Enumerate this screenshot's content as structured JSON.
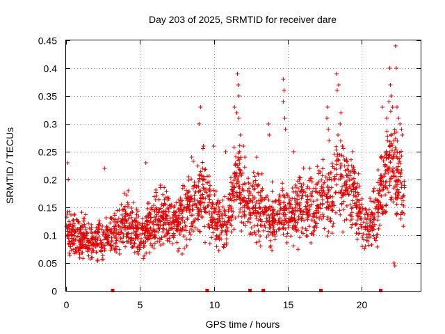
{
  "chart_data": {
    "type": "scatter",
    "title": "Day 203 of 2025, SRMTID for receiver dare",
    "xlabel": "GPS time / hours",
    "ylabel": "SRMTID / TECUs",
    "xlim": [
      0,
      24
    ],
    "ylim": [
      0,
      0.45
    ],
    "xticks": [
      0,
      5,
      10,
      15,
      20
    ],
    "xtick_labels": [
      "0",
      "5",
      "10",
      "15",
      "20"
    ],
    "yticks": [
      0,
      0.05,
      0.1,
      0.15,
      0.2,
      0.25,
      0.3,
      0.35,
      0.4,
      0.45
    ],
    "ytick_labels": [
      "0",
      "0.05",
      "0.1",
      "0.15",
      "0.2",
      "0.25",
      "0.3",
      "0.35",
      "0.4",
      "0.45"
    ],
    "grid": true,
    "marker": "+",
    "color": "#e00000",
    "trend": {
      "x": [
        0,
        0.5,
        1,
        1.5,
        2,
        2.5,
        3,
        3.5,
        4,
        4.5,
        5,
        5.5,
        6,
        6.5,
        7,
        7.5,
        8,
        8.5,
        9,
        9.5,
        10,
        10.5,
        11,
        11.5,
        12,
        12.5,
        13,
        13.5,
        14,
        14.5,
        15,
        15.5,
        16,
        16.5,
        17,
        17.5,
        18,
        18.5,
        19,
        19.5,
        20,
        20.5,
        21,
        21.5,
        22,
        22.5,
        23
      ],
      "y": [
        0.115,
        0.1,
        0.095,
        0.09,
        0.092,
        0.095,
        0.1,
        0.11,
        0.12,
        0.115,
        0.095,
        0.11,
        0.125,
        0.13,
        0.13,
        0.125,
        0.14,
        0.16,
        0.175,
        0.17,
        0.13,
        0.12,
        0.13,
        0.2,
        0.17,
        0.155,
        0.15,
        0.14,
        0.135,
        0.14,
        0.135,
        0.145,
        0.15,
        0.14,
        0.15,
        0.17,
        0.18,
        0.2,
        0.19,
        0.175,
        0.125,
        0.12,
        0.14,
        0.2,
        0.23,
        0.2,
        0.16
      ]
    },
    "spike_points": [
      {
        "x": 0.1,
        "y": 0.23
      },
      {
        "x": 0.15,
        "y": 0.2
      },
      {
        "x": 2.6,
        "y": 0.22
      },
      {
        "x": 4.2,
        "y": 0.18
      },
      {
        "x": 5.4,
        "y": 0.23
      },
      {
        "x": 6.4,
        "y": 0.19
      },
      {
        "x": 8.5,
        "y": 0.24
      },
      {
        "x": 9.1,
        "y": 0.33
      },
      {
        "x": 9.0,
        "y": 0.3
      },
      {
        "x": 9.3,
        "y": 0.26
      },
      {
        "x": 10.0,
        "y": 0.26
      },
      {
        "x": 10.8,
        "y": 0.25
      },
      {
        "x": 11.4,
        "y": 0.33
      },
      {
        "x": 11.6,
        "y": 0.39
      },
      {
        "x": 11.65,
        "y": 0.37
      },
      {
        "x": 11.7,
        "y": 0.35
      },
      {
        "x": 11.55,
        "y": 0.32
      },
      {
        "x": 11.7,
        "y": 0.31
      },
      {
        "x": 11.8,
        "y": 0.28
      },
      {
        "x": 12.0,
        "y": 0.26
      },
      {
        "x": 12.1,
        "y": 0.24
      },
      {
        "x": 12.9,
        "y": 0.24
      },
      {
        "x": 13.7,
        "y": 0.3
      },
      {
        "x": 13.75,
        "y": 0.28
      },
      {
        "x": 14.7,
        "y": 0.38
      },
      {
        "x": 14.75,
        "y": 0.36
      },
      {
        "x": 14.7,
        "y": 0.34
      },
      {
        "x": 14.8,
        "y": 0.31
      },
      {
        "x": 14.85,
        "y": 0.29
      },
      {
        "x": 15.4,
        "y": 0.25
      },
      {
        "x": 16.5,
        "y": 0.22
      },
      {
        "x": 17.7,
        "y": 0.33
      },
      {
        "x": 17.65,
        "y": 0.31
      },
      {
        "x": 17.75,
        "y": 0.29
      },
      {
        "x": 17.8,
        "y": 0.27
      },
      {
        "x": 18.3,
        "y": 0.39
      },
      {
        "x": 18.35,
        "y": 0.36
      },
      {
        "x": 18.45,
        "y": 0.37
      },
      {
        "x": 18.6,
        "y": 0.32
      },
      {
        "x": 18.55,
        "y": 0.3
      },
      {
        "x": 18.4,
        "y": 0.28
      },
      {
        "x": 18.7,
        "y": 0.26
      },
      {
        "x": 19.4,
        "y": 0.25
      },
      {
        "x": 21.3,
        "y": 0.24
      },
      {
        "x": 21.4,
        "y": 0.33
      },
      {
        "x": 21.9,
        "y": 0.4
      },
      {
        "x": 21.95,
        "y": 0.37
      },
      {
        "x": 22.0,
        "y": 0.35
      },
      {
        "x": 21.85,
        "y": 0.34
      },
      {
        "x": 22.1,
        "y": 0.33
      },
      {
        "x": 22.3,
        "y": 0.44
      },
      {
        "x": 22.35,
        "y": 0.4
      },
      {
        "x": 22.4,
        "y": 0.33
      },
      {
        "x": 22.5,
        "y": 0.31
      },
      {
        "x": 22.6,
        "y": 0.3
      },
      {
        "x": 22.7,
        "y": 0.29
      },
      {
        "x": 22.75,
        "y": 0.28
      },
      {
        "x": 21.7,
        "y": 0.31
      },
      {
        "x": 21.75,
        "y": 0.27
      },
      {
        "x": 22.2,
        "y": 0.05
      },
      {
        "x": 22.25,
        "y": 0.045
      }
    ],
    "zero_markers": [
      {
        "x": 3.15,
        "y": 0
      },
      {
        "x": 9.55,
        "y": 0
      },
      {
        "x": 12.45,
        "y": 0
      },
      {
        "x": 13.35,
        "y": 0
      },
      {
        "x": 17.25,
        "y": 0
      },
      {
        "x": 21.3,
        "y": 0
      }
    ]
  }
}
